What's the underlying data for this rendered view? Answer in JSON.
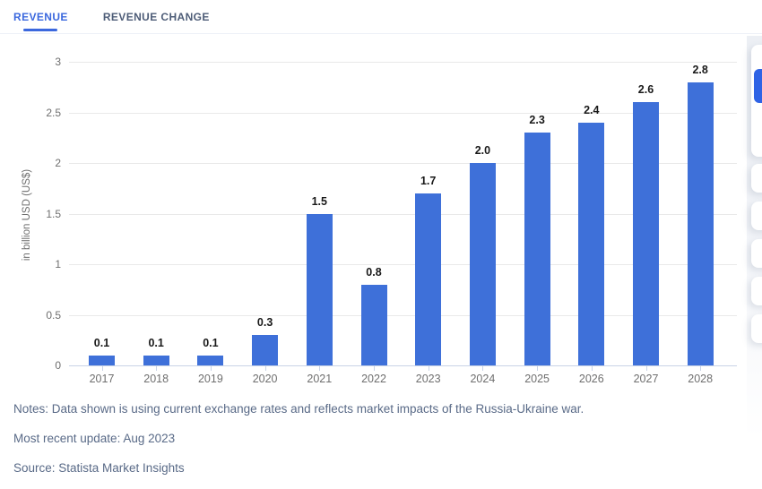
{
  "tabs": [
    {
      "label": "REVENUE",
      "active": true
    },
    {
      "label": "REVENUE CHANGE",
      "active": false
    }
  ],
  "chart_data": {
    "type": "bar",
    "categories": [
      "2017",
      "2018",
      "2019",
      "2020",
      "2021",
      "2022",
      "2023",
      "2024",
      "2025",
      "2026",
      "2027",
      "2028"
    ],
    "values": [
      0.1,
      0.1,
      0.1,
      0.3,
      1.5,
      0.8,
      1.7,
      2.0,
      2.3,
      2.4,
      2.6,
      2.8
    ],
    "data_labels": [
      "0.1",
      "0.1",
      "0.1",
      "0.3",
      "1.5",
      "0.8",
      "1.7",
      "2.0",
      "2.3",
      "2.4",
      "2.6",
      "2.8"
    ],
    "title": "",
    "xlabel": "",
    "ylabel": "in billion USD (US$)",
    "ylim": [
      0,
      3
    ],
    "yticks": [
      0,
      0.5,
      1,
      1.5,
      2,
      2.5,
      3
    ],
    "ytick_labels": [
      "0",
      "0.5",
      "1",
      "1.5",
      "2",
      "2.5",
      "3"
    ],
    "grid": true,
    "legend": false,
    "bar_color": "#3e70d9"
  },
  "footer": {
    "notes": "Notes: Data shown is using current exchange rates and reflects market impacts of the Russia-Ukraine war.",
    "update": "Most recent update: Aug 2023",
    "source": "Source: Statista Market Insights"
  },
  "colors": {
    "accent_blue": "#3b68de",
    "bar_blue": "#3e70d9",
    "toolbar_button_blue": "#2f63e5",
    "gridline": "#e9e9e9",
    "baseline": "#c9d3e6",
    "note_text": "#596a87"
  }
}
